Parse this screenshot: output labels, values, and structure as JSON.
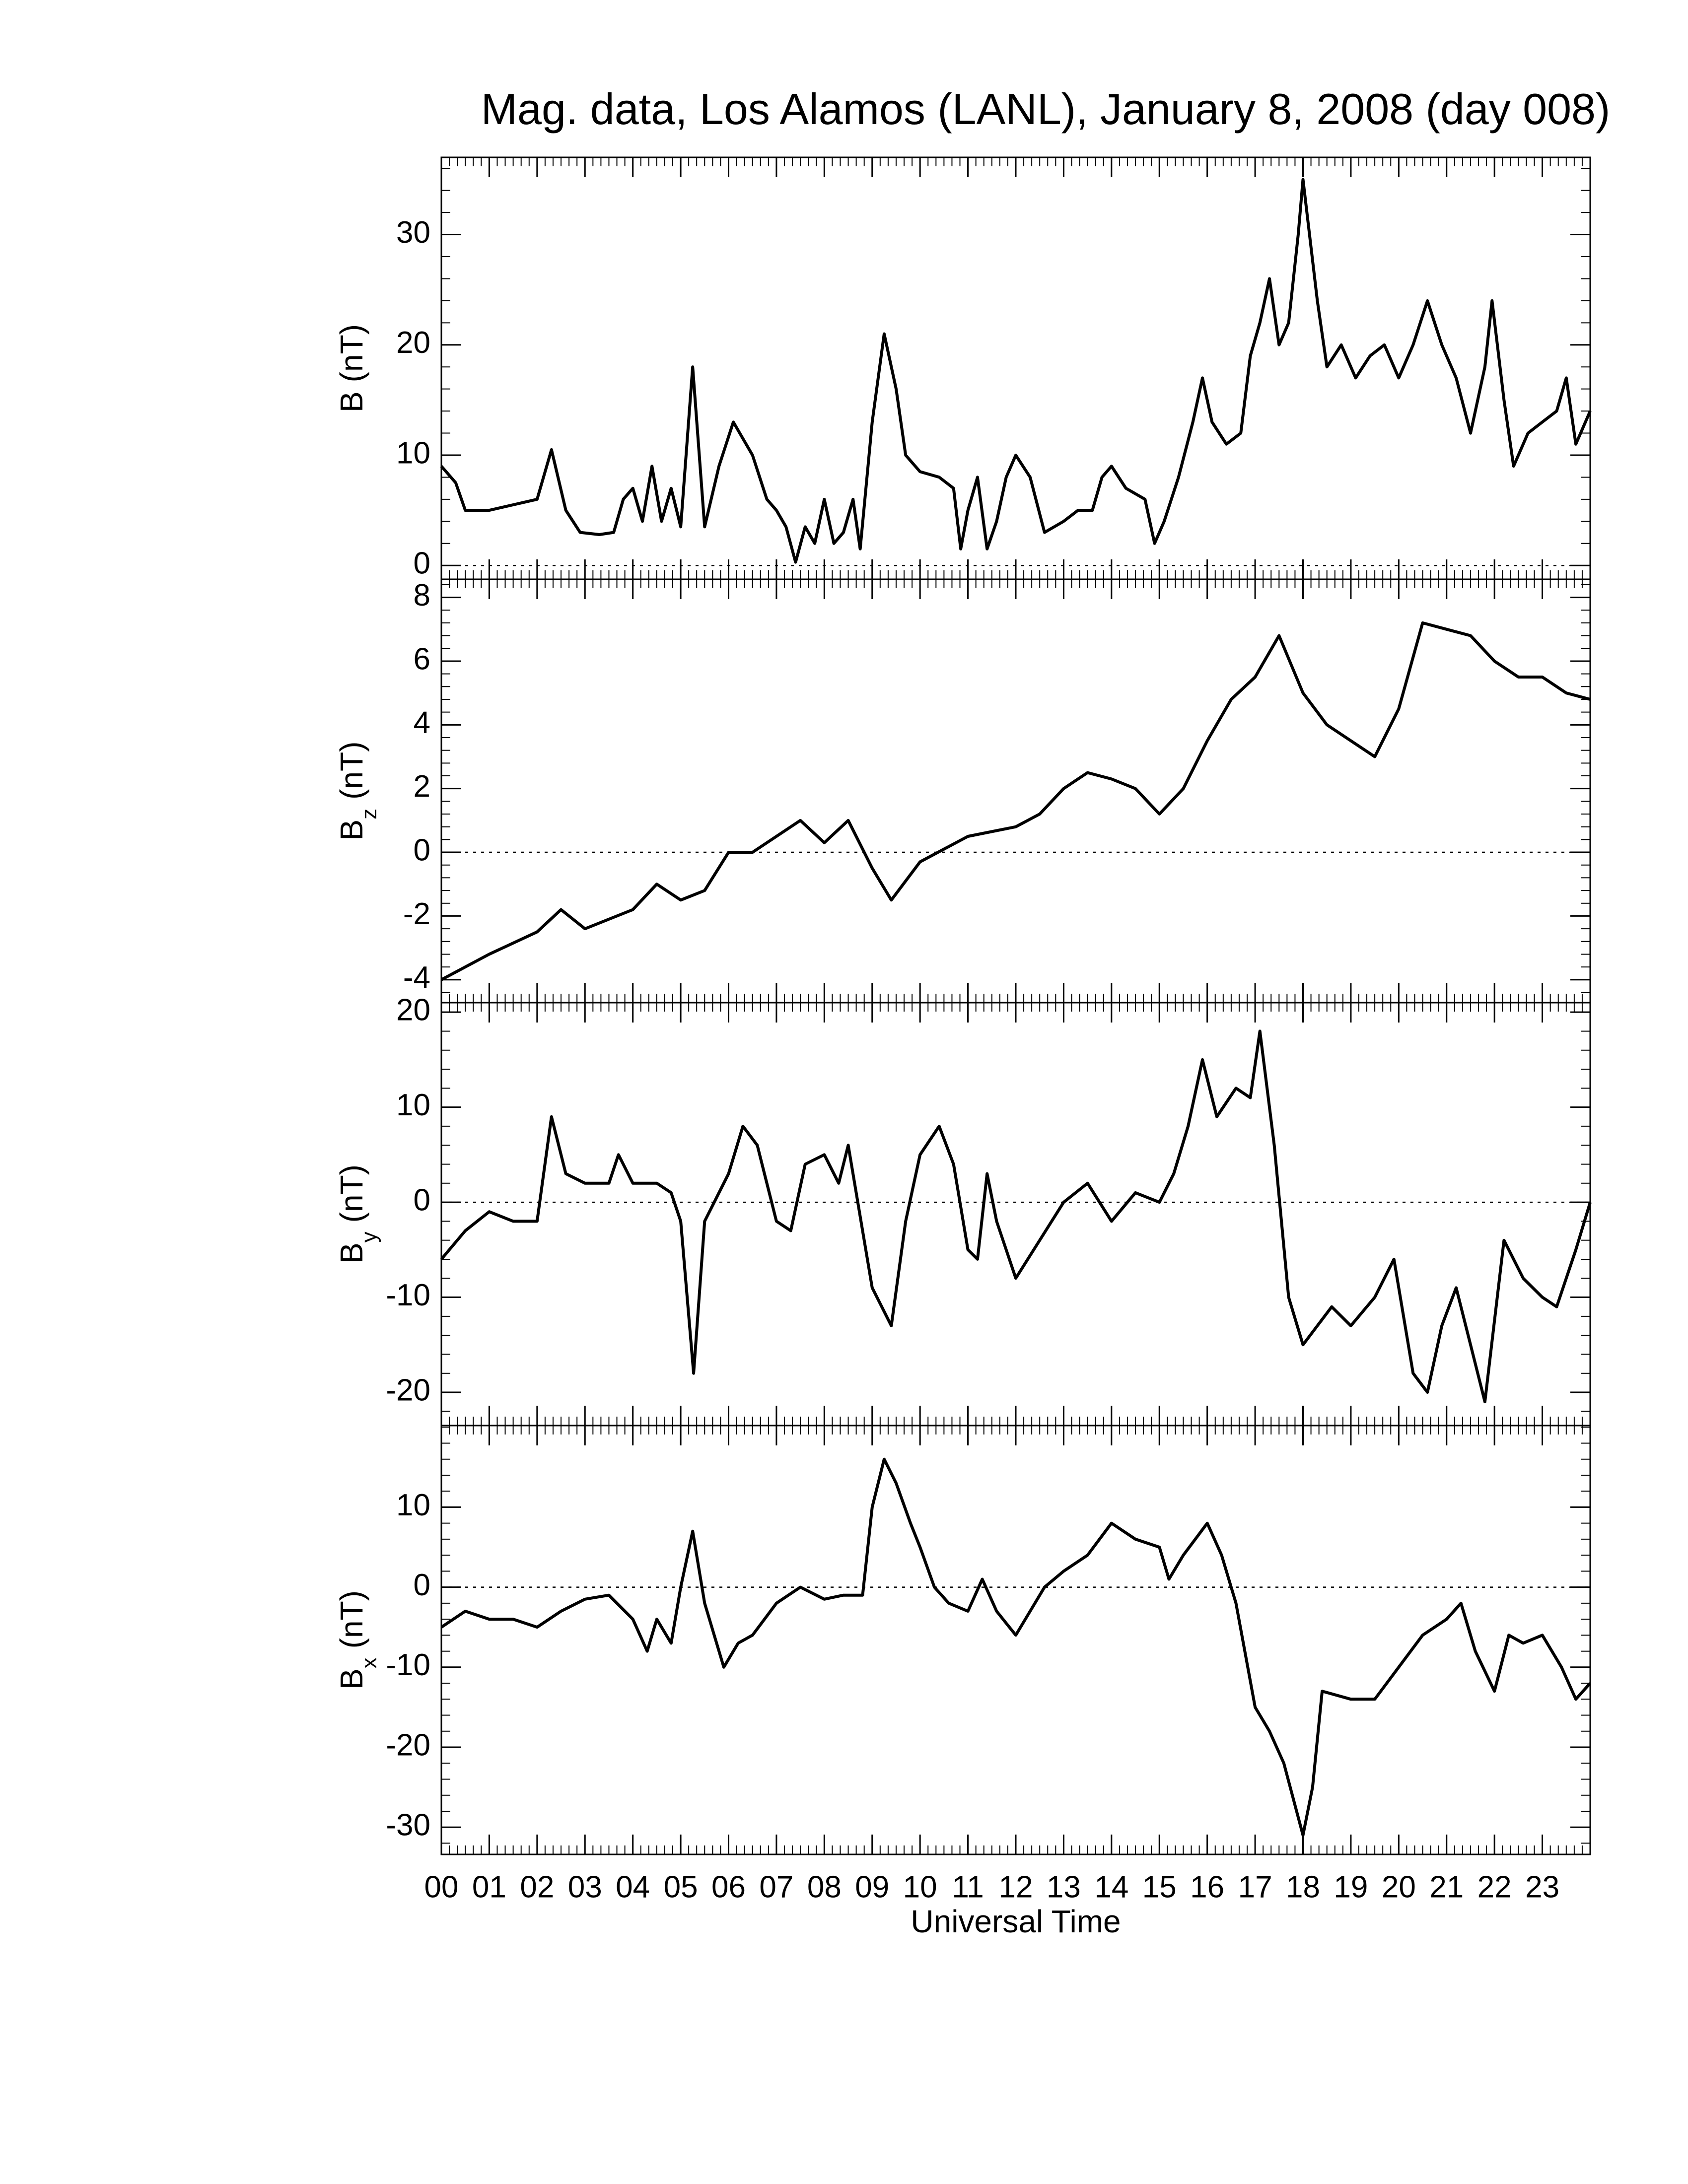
{
  "chart_data": [
    {
      "type": "line",
      "title": "Mag. data, Los Alamos (LANL), January 8, 2008 (day 008)",
      "ylabel": {
        "base": "B",
        "rest": "(nT)"
      },
      "color": "#000000",
      "zero_line": true,
      "ylim": [
        -1.25,
        37
      ],
      "yticks": [
        0,
        10,
        20,
        30
      ],
      "x": [
        0,
        0.3,
        0.5,
        1,
        1.5,
        2,
        2.3,
        2.6,
        2.9,
        3.3,
        3.6,
        3.8,
        4,
        4.2,
        4.4,
        4.6,
        4.8,
        5,
        5.25,
        5.5,
        5.8,
        6.1,
        6.5,
        6.8,
        7,
        7.2,
        7.4,
        7.6,
        7.8,
        8,
        8.2,
        8.4,
        8.6,
        8.75,
        9,
        9.25,
        9.5,
        9.7,
        10,
        10.4,
        10.7,
        10.85,
        11,
        11.2,
        11.4,
        11.6,
        11.8,
        12,
        12.3,
        12.6,
        13,
        13.3,
        13.6,
        13.8,
        14,
        14.3,
        14.7,
        14.9,
        15.1,
        15.4,
        15.7,
        15.9,
        16.1,
        16.4,
        16.7,
        16.9,
        17.1,
        17.3,
        17.5,
        17.7,
        17.9,
        18,
        18.3,
        18.5,
        18.8,
        19.1,
        19.4,
        19.7,
        20,
        20.3,
        20.6,
        20.9,
        21.2,
        21.5,
        21.8,
        21.95,
        22.2,
        22.4,
        22.7,
        23,
        23.3,
        23.5,
        23.7,
        24
      ],
      "values": [
        9,
        7.5,
        5,
        5,
        5.5,
        6,
        10.5,
        5,
        3,
        2.8,
        3,
        6,
        7,
        4,
        9,
        4,
        7,
        3.5,
        18,
        3.5,
        9,
        13,
        10,
        6,
        5,
        3.5,
        0.3,
        3.5,
        2,
        6,
        2,
        3,
        6,
        1.5,
        13,
        21,
        16,
        10,
        8.5,
        8,
        7,
        1.5,
        5,
        8,
        1.5,
        4,
        8,
        10,
        8,
        3,
        4,
        5,
        5,
        8,
        9,
        7,
        6,
        2,
        4,
        8,
        13,
        17,
        13,
        11,
        12,
        19,
        22,
        26,
        20,
        22,
        30,
        35,
        24,
        18,
        20,
        17,
        19,
        20,
        17,
        20,
        24,
        20,
        17,
        12,
        18,
        24,
        15,
        9,
        12,
        13,
        14,
        17,
        11,
        14
      ]
    },
    {
      "type": "line",
      "ylabel": {
        "base": "B",
        "sub": "z",
        "rest": "(nT)"
      },
      "color": "#000000",
      "zero_line": true,
      "ylim": [
        -4.72,
        8.57
      ],
      "yticks": [
        -4,
        -2,
        0,
        2,
        4,
        6,
        8
      ],
      "x": [
        0,
        1,
        2,
        2.5,
        3,
        4,
        4.5,
        5,
        5.5,
        6,
        6.5,
        7,
        7.5,
        8,
        8.5,
        9,
        9.4,
        10,
        11,
        12,
        12.5,
        13,
        13.5,
        14,
        14.5,
        15,
        15.5,
        16,
        16.5,
        17,
        17.5,
        18,
        18.5,
        19,
        19.5,
        20,
        20.5,
        21,
        21.5,
        22,
        22.5,
        23,
        23.5,
        24
      ],
      "values": [
        -4,
        -3.2,
        -2.5,
        -1.8,
        -2.4,
        -1.8,
        -1,
        -1.5,
        -1.2,
        0,
        0,
        0.5,
        1,
        0.3,
        1,
        -0.5,
        -1.5,
        -0.3,
        0.5,
        0.8,
        1.2,
        2,
        2.5,
        2.3,
        2,
        1.2,
        2,
        3.5,
        4.8,
        5.5,
        6.8,
        5,
        4,
        3.5,
        3,
        4.5,
        7.2,
        7,
        6.8,
        6,
        5.5,
        5.5,
        5,
        4.8
      ]
    },
    {
      "type": "line",
      "ylabel": {
        "base": "B",
        "sub": "y",
        "rest": "(nT)"
      },
      "color": "#000000",
      "zero_line": true,
      "ylim": [
        -23.5,
        21
      ],
      "yticks": [
        -20,
        -10,
        0,
        10,
        20
      ],
      "x": [
        0,
        0.5,
        1,
        1.5,
        2,
        2.3,
        2.6,
        3,
        3.5,
        3.7,
        4,
        4.5,
        4.8,
        5,
        5.27,
        5.5,
        6,
        6.3,
        6.6,
        7,
        7.3,
        7.6,
        8,
        8.3,
        8.5,
        8.7,
        9,
        9.4,
        9.7,
        10,
        10.4,
        10.7,
        11,
        11.2,
        11.4,
        11.6,
        12,
        12.5,
        13,
        13.5,
        14,
        14.5,
        15,
        15.3,
        15.6,
        15.9,
        16.2,
        16.6,
        16.9,
        17.1,
        17.4,
        17.7,
        18,
        18.3,
        18.6,
        19,
        19.5,
        19.9,
        20.3,
        20.6,
        20.9,
        21.2,
        21.5,
        21.8,
        22.2,
        22.6,
        23,
        23.3,
        23.7,
        24
      ],
      "values": [
        -6,
        -3,
        -1,
        -2,
        -2,
        9,
        3,
        2,
        2,
        5,
        2,
        2,
        1,
        -2,
        -18,
        -2,
        3,
        8,
        6,
        -2,
        -3,
        4,
        5,
        2,
        6,
        0,
        -9,
        -13,
        -2,
        5,
        8,
        4,
        -5,
        -6,
        3,
        -2,
        -8,
        -4,
        0,
        2,
        -2,
        1,
        0,
        3,
        8,
        15,
        9,
        12,
        11,
        18,
        6,
        -10,
        -15,
        -13,
        -11,
        -13,
        -10,
        -6,
        -18,
        -20,
        -13,
        -9,
        -15,
        -21,
        -4,
        -8,
        -10,
        -11,
        -5,
        0
      ]
    },
    {
      "type": "line",
      "ylabel": {
        "base": "B",
        "sub": "x",
        "rest": "(nT)"
      },
      "xlabel": "Universal Time",
      "color": "#000000",
      "zero_line": true,
      "xlim": [
        0,
        24
      ],
      "xticks": [
        {
          "value": 0,
          "label": "00"
        },
        {
          "value": 1,
          "label": "01"
        },
        {
          "value": 2,
          "label": "02"
        },
        {
          "value": 3,
          "label": "03"
        },
        {
          "value": 4,
          "label": "04"
        },
        {
          "value": 5,
          "label": "05"
        },
        {
          "value": 6,
          "label": "06"
        },
        {
          "value": 7,
          "label": "07"
        },
        {
          "value": 8,
          "label": "08"
        },
        {
          "value": 9,
          "label": "09"
        },
        10,
        11,
        12,
        13,
        14,
        15,
        16,
        17,
        18,
        19,
        20,
        21,
        22,
        23
      ],
      "ylim": [
        -33.4,
        20.2
      ],
      "yticks": [
        -30,
        -20,
        -10,
        0,
        10
      ],
      "x": [
        0,
        0.5,
        1,
        1.5,
        2,
        2.5,
        3,
        3.5,
        4,
        4.3,
        4.5,
        4.8,
        5,
        5.25,
        5.5,
        5.9,
        6.2,
        6.5,
        7,
        7.5,
        8,
        8.4,
        8.8,
        9,
        9.25,
        9.5,
        9.8,
        10,
        10.3,
        10.6,
        11,
        11.3,
        11.6,
        12,
        12.3,
        12.6,
        13,
        13.5,
        14,
        14.5,
        15,
        15.2,
        15.5,
        16,
        16.3,
        16.6,
        17,
        17.3,
        17.6,
        18,
        18.2,
        18.4,
        19,
        19.5,
        20,
        20.5,
        21,
        21.3,
        21.6,
        22,
        22.3,
        22.6,
        23,
        23.4,
        23.7,
        24
      ],
      "values": [
        -5,
        -3,
        -4,
        -4,
        -5,
        -3,
        -1.5,
        -1,
        -4,
        -8,
        -4,
        -7,
        0,
        7,
        -2,
        -10,
        -7,
        -6,
        -2,
        0,
        -1.5,
        -1,
        -1,
        10,
        16,
        13,
        8,
        5,
        0,
        -2,
        -3,
        1,
        -3,
        -6,
        -3,
        0,
        2,
        4,
        8,
        6,
        5,
        1,
        4,
        8,
        4,
        -2,
        -15,
        -18,
        -22,
        -31,
        -25,
        -13,
        -14,
        -14,
        -10,
        -6,
        -4,
        -2,
        -8,
        -13,
        -6,
        -7,
        -6,
        -10,
        -14,
        -12
      ]
    }
  ]
}
